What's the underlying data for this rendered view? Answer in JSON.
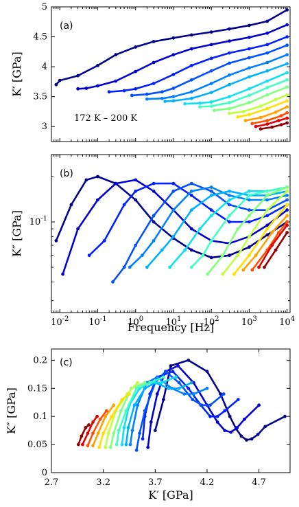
{
  "chart_data": [
    {
      "panel": "(a)",
      "type": "scatter",
      "note": "172 K – 200 K",
      "xlabel": "",
      "ylabel": "K′ [GPa]",
      "xscale": "log",
      "xlim": [
        0.006,
        12000
      ],
      "ylim": [
        2.75,
        5.0
      ],
      "yticks": [
        3,
        3.5,
        4,
        4.5,
        5
      ],
      "ytick_labels": [
        "3",
        "3.5",
        "4",
        "4.5",
        "5"
      ],
      "x_tick_labels_shown": false,
      "series": [
        {
          "color": "#00008f",
          "x": [
            0.008,
            0.01,
            0.03,
            0.1,
            0.3,
            1,
            3,
            10,
            30,
            100,
            300,
            1000,
            3000,
            10000
          ],
          "y": [
            3.7,
            3.77,
            3.85,
            4.02,
            4.2,
            4.33,
            4.42,
            4.48,
            4.53,
            4.58,
            4.63,
            4.69,
            4.76,
            4.95
          ]
        },
        {
          "color": "#0000d0",
          "x": [
            0.03,
            0.05,
            0.1,
            0.3,
            1,
            3,
            10,
            30,
            100,
            300,
            1000,
            3000,
            10000
          ],
          "y": [
            3.63,
            3.64,
            3.68,
            3.76,
            3.92,
            4.07,
            4.2,
            4.3,
            4.37,
            4.43,
            4.49,
            4.56,
            4.7
          ]
        },
        {
          "color": "#0020ff",
          "x": [
            0.2,
            0.5,
            1,
            3,
            10,
            30,
            100,
            300,
            1000,
            3000,
            10000
          ],
          "y": [
            3.58,
            3.6,
            3.63,
            3.72,
            3.87,
            4.02,
            4.14,
            4.23,
            4.3,
            4.37,
            4.5
          ]
        },
        {
          "color": "#0050ff",
          "x": [
            0.8,
            2,
            5,
            10,
            30,
            100,
            300,
            1000,
            3000,
            10000
          ],
          "y": [
            3.52,
            3.54,
            3.58,
            3.64,
            3.78,
            3.93,
            4.06,
            4.15,
            4.23,
            4.36
          ]
        },
        {
          "color": "#0080ff",
          "x": [
            2,
            5,
            10,
            30,
            100,
            300,
            1000,
            3000,
            10000
          ],
          "y": [
            3.46,
            3.47,
            3.5,
            3.58,
            3.72,
            3.86,
            3.98,
            4.07,
            4.2
          ]
        },
        {
          "color": "#00b0ff",
          "x": [
            6,
            10,
            30,
            100,
            300,
            1000,
            3000,
            10000
          ],
          "y": [
            3.42,
            3.43,
            3.47,
            3.57,
            3.7,
            3.83,
            3.93,
            4.05
          ]
        },
        {
          "color": "#10e0f0",
          "x": [
            20,
            50,
            100,
            300,
            1000,
            3000,
            10000
          ],
          "y": [
            3.38,
            3.39,
            3.41,
            3.5,
            3.63,
            3.76,
            3.9
          ]
        },
        {
          "color": "#40ffc0",
          "x": [
            50,
            100,
            300,
            1000,
            3000,
            10000
          ],
          "y": [
            3.33,
            3.34,
            3.4,
            3.52,
            3.65,
            3.78
          ]
        },
        {
          "color": "#80ff80",
          "x": [
            120,
            300,
            1000,
            3000,
            10000
          ],
          "y": [
            3.27,
            3.3,
            3.4,
            3.53,
            3.66
          ]
        },
        {
          "color": "#c0ff40",
          "x": [
            300,
            700,
            2000,
            5000,
            10000
          ],
          "y": [
            3.22,
            3.25,
            3.34,
            3.45,
            3.53
          ]
        },
        {
          "color": "#ffe000",
          "x": [
            500,
            1000,
            3000,
            10000
          ],
          "y": [
            3.16,
            3.2,
            3.3,
            3.43
          ]
        },
        {
          "color": "#ffa000",
          "x": [
            800,
            2000,
            5000,
            10000
          ],
          "y": [
            3.1,
            3.15,
            3.24,
            3.33
          ]
        },
        {
          "color": "#ff5000",
          "x": [
            1200,
            3000,
            7000,
            10000
          ],
          "y": [
            3.05,
            3.1,
            3.18,
            3.23
          ]
        },
        {
          "color": "#e00000",
          "x": [
            1500,
            3000,
            6000,
            10000
          ],
          "y": [
            3.0,
            3.04,
            3.1,
            3.14
          ]
        },
        {
          "color": "#900000",
          "x": [
            2000,
            4000,
            7000,
            10000
          ],
          "y": [
            2.96,
            2.99,
            3.03,
            3.06
          ]
        }
      ]
    },
    {
      "panel": "(b)",
      "type": "scatter",
      "xlabel": "Frequency [Hz]",
      "ylabel": "K″ [GPa]",
      "xscale": "log",
      "yscale": "log",
      "xlim": [
        0.006,
        12000
      ],
      "ylim": [
        0.025,
        0.28
      ],
      "xticks": [
        0.01,
        0.1,
        1,
        10,
        100,
        1000,
        10000
      ],
      "xtick_labels": [
        "10^-2",
        "10^-1",
        "10^0",
        "10^1",
        "10^2",
        "10^3",
        "10^4"
      ],
      "yticks": [
        0.1
      ],
      "ytick_labels": [
        "10^-1"
      ],
      "series": [
        {
          "color": "#00008f",
          "x": [
            0.008,
            0.02,
            0.05,
            0.1,
            0.3,
            1,
            3,
            10,
            30,
            100,
            300,
            1000,
            3000,
            10000
          ],
          "y": [
            0.075,
            0.13,
            0.19,
            0.2,
            0.18,
            0.14,
            0.1,
            0.078,
            0.065,
            0.058,
            0.06,
            0.068,
            0.082,
            0.1
          ]
        },
        {
          "color": "#0000d0",
          "x": [
            0.012,
            0.03,
            0.1,
            0.3,
            1,
            3,
            10,
            30,
            100,
            300,
            1000,
            3000,
            10000
          ],
          "y": [
            0.045,
            0.09,
            0.14,
            0.18,
            0.19,
            0.16,
            0.12,
            0.09,
            0.075,
            0.072,
            0.08,
            0.095,
            0.12
          ]
        },
        {
          "color": "#0020ff",
          "x": [
            0.06,
            0.15,
            0.5,
            1,
            3,
            10,
            30,
            100,
            300,
            1000,
            3000,
            10000
          ],
          "y": [
            0.06,
            0.075,
            0.13,
            0.16,
            0.18,
            0.18,
            0.15,
            0.12,
            0.1,
            0.1,
            0.11,
            0.13
          ]
        },
        {
          "color": "#0050ff",
          "x": [
            0.25,
            0.5,
            1,
            3,
            10,
            30,
            100,
            300,
            1000,
            3000,
            10000
          ],
          "y": [
            0.04,
            0.05,
            0.07,
            0.11,
            0.16,
            0.18,
            0.16,
            0.13,
            0.12,
            0.12,
            0.14
          ]
        },
        {
          "color": "#0080ff",
          "x": [
            0.7,
            1.5,
            3,
            10,
            30,
            100,
            300,
            1000,
            3000,
            10000
          ],
          "y": [
            0.05,
            0.06,
            0.075,
            0.12,
            0.16,
            0.17,
            0.15,
            0.14,
            0.14,
            0.15
          ]
        },
        {
          "color": "#00b0ff",
          "x": [
            2,
            5,
            10,
            30,
            100,
            300,
            1000,
            3000,
            10000
          ],
          "y": [
            0.05,
            0.065,
            0.08,
            0.12,
            0.15,
            0.16,
            0.15,
            0.15,
            0.16
          ]
        },
        {
          "color": "#10e0f0",
          "x": [
            8,
            20,
            50,
            100,
            300,
            1000,
            3000,
            10000
          ],
          "y": [
            0.05,
            0.065,
            0.09,
            0.11,
            0.14,
            0.16,
            0.16,
            0.17
          ]
        },
        {
          "color": "#40ffc0",
          "x": [
            30,
            60,
            100,
            300,
            1000,
            3000,
            10000
          ],
          "y": [
            0.05,
            0.06,
            0.075,
            0.11,
            0.15,
            0.16,
            0.17
          ]
        },
        {
          "color": "#80ff80",
          "x": [
            80,
            200,
            500,
            1000,
            3000,
            10000
          ],
          "y": [
            0.045,
            0.06,
            0.09,
            0.11,
            0.15,
            0.17
          ]
        },
        {
          "color": "#c0ff40",
          "x": [
            200,
            500,
            1000,
            3000,
            10000
          ],
          "y": [
            0.045,
            0.06,
            0.08,
            0.12,
            0.16
          ]
        },
        {
          "color": "#ffe000",
          "x": [
            400,
            1000,
            3000,
            10000
          ],
          "y": [
            0.045,
            0.06,
            0.09,
            0.13
          ]
        },
        {
          "color": "#ffa000",
          "x": [
            700,
            1500,
            4000,
            10000
          ],
          "y": [
            0.048,
            0.06,
            0.085,
            0.11
          ]
        },
        {
          "color": "#ff5000",
          "x": [
            1200,
            3000,
            6000,
            10000
          ],
          "y": [
            0.048,
            0.065,
            0.085,
            0.1
          ]
        },
        {
          "color": "#e00000",
          "x": [
            1800,
            4000,
            10000
          ],
          "y": [
            0.05,
            0.07,
            0.095
          ]
        },
        {
          "color": "#900000",
          "x": [
            2500,
            5000,
            10000
          ],
          "y": [
            0.05,
            0.065,
            0.085
          ]
        }
      ]
    },
    {
      "panel": "(c)",
      "type": "scatter",
      "xlabel": "K′ [GPa]",
      "ylabel": "K″ [GPa]",
      "xlim": [
        2.7,
        5.0
      ],
      "ylim": [
        0,
        0.22
      ],
      "xticks": [
        2.7,
        3.2,
        3.7,
        4.2,
        4.7
      ],
      "xtick_labels": [
        "2.7",
        "3.2",
        "3.7",
        "4.2",
        "4.7"
      ],
      "yticks": [
        0,
        0.05,
        0.1,
        0.15,
        0.2
      ],
      "ytick_labels": [
        "0",
        "0.05",
        "0.1",
        "0.15",
        "0.2"
      ],
      "series": [
        {
          "color": "#00008f",
          "x": [
            3.7,
            3.78,
            3.85,
            4.02,
            4.2,
            4.33,
            4.42,
            4.48,
            4.53,
            4.58,
            4.63,
            4.69,
            4.76,
            4.95
          ],
          "y": [
            0.075,
            0.13,
            0.19,
            0.2,
            0.18,
            0.14,
            0.1,
            0.078,
            0.065,
            0.058,
            0.06,
            0.068,
            0.082,
            0.1
          ]
        },
        {
          "color": "#0000d0",
          "x": [
            3.63,
            3.66,
            3.72,
            3.8,
            3.92,
            4.07,
            4.2,
            4.3,
            4.37,
            4.43,
            4.49,
            4.56,
            4.7
          ],
          "y": [
            0.045,
            0.09,
            0.14,
            0.18,
            0.19,
            0.16,
            0.12,
            0.09,
            0.075,
            0.072,
            0.08,
            0.095,
            0.12
          ]
        },
        {
          "color": "#0020ff",
          "x": [
            3.58,
            3.6,
            3.65,
            3.72,
            3.87,
            4.02,
            4.14,
            4.23,
            4.3,
            4.37,
            4.5
          ],
          "y": [
            0.06,
            0.1,
            0.14,
            0.17,
            0.18,
            0.15,
            0.12,
            0.1,
            0.1,
            0.11,
            0.13
          ]
        },
        {
          "color": "#0050ff",
          "x": [
            3.52,
            3.55,
            3.6,
            3.7,
            3.8,
            3.93,
            4.06,
            4.15,
            4.23,
            4.36
          ],
          "y": [
            0.04,
            0.07,
            0.11,
            0.16,
            0.18,
            0.16,
            0.13,
            0.12,
            0.12,
            0.14
          ]
        },
        {
          "color": "#0080ff",
          "x": [
            3.46,
            3.48,
            3.53,
            3.62,
            3.72,
            3.86,
            3.98,
            4.07,
            4.2
          ],
          "y": [
            0.05,
            0.075,
            0.12,
            0.16,
            0.17,
            0.15,
            0.14,
            0.14,
            0.15
          ]
        },
        {
          "color": "#00b0ff",
          "x": [
            3.42,
            3.44,
            3.5,
            3.6,
            3.7,
            3.83,
            3.93,
            4.05
          ],
          "y": [
            0.05,
            0.08,
            0.12,
            0.15,
            0.16,
            0.15,
            0.15,
            0.16
          ]
        },
        {
          "color": "#10e0f0",
          "x": [
            3.38,
            3.4,
            3.45,
            3.55,
            3.65,
            3.76,
            3.9
          ],
          "y": [
            0.05,
            0.08,
            0.12,
            0.15,
            0.16,
            0.16,
            0.17
          ]
        },
        {
          "color": "#40ffc0",
          "x": [
            3.33,
            3.35,
            3.42,
            3.52,
            3.65,
            3.78
          ],
          "y": [
            0.05,
            0.075,
            0.11,
            0.15,
            0.16,
            0.17
          ]
        },
        {
          "color": "#80ff80",
          "x": [
            3.27,
            3.3,
            3.37,
            3.47,
            3.6
          ],
          "y": [
            0.045,
            0.07,
            0.11,
            0.15,
            0.16
          ]
        },
        {
          "color": "#c0ff40",
          "x": [
            3.22,
            3.25,
            3.32,
            3.43,
            3.53
          ],
          "y": [
            0.045,
            0.07,
            0.11,
            0.14,
            0.16
          ]
        },
        {
          "color": "#ffe000",
          "x": [
            3.16,
            3.2,
            3.28,
            3.38,
            3.45
          ],
          "y": [
            0.045,
            0.07,
            0.1,
            0.13,
            0.14
          ]
        },
        {
          "color": "#ffa000",
          "x": [
            3.1,
            3.15,
            3.22,
            3.3
          ],
          "y": [
            0.048,
            0.07,
            0.1,
            0.12
          ]
        },
        {
          "color": "#ff5000",
          "x": [
            3.05,
            3.1,
            3.17,
            3.23
          ],
          "y": [
            0.048,
            0.07,
            0.095,
            0.11
          ]
        },
        {
          "color": "#e00000",
          "x": [
            3.0,
            3.05,
            3.1,
            3.14
          ],
          "y": [
            0.05,
            0.07,
            0.09,
            0.1
          ]
        },
        {
          "color": "#900000",
          "x": [
            2.96,
            2.99,
            3.03,
            3.06
          ],
          "y": [
            0.05,
            0.065,
            0.08,
            0.085
          ]
        }
      ]
    }
  ]
}
